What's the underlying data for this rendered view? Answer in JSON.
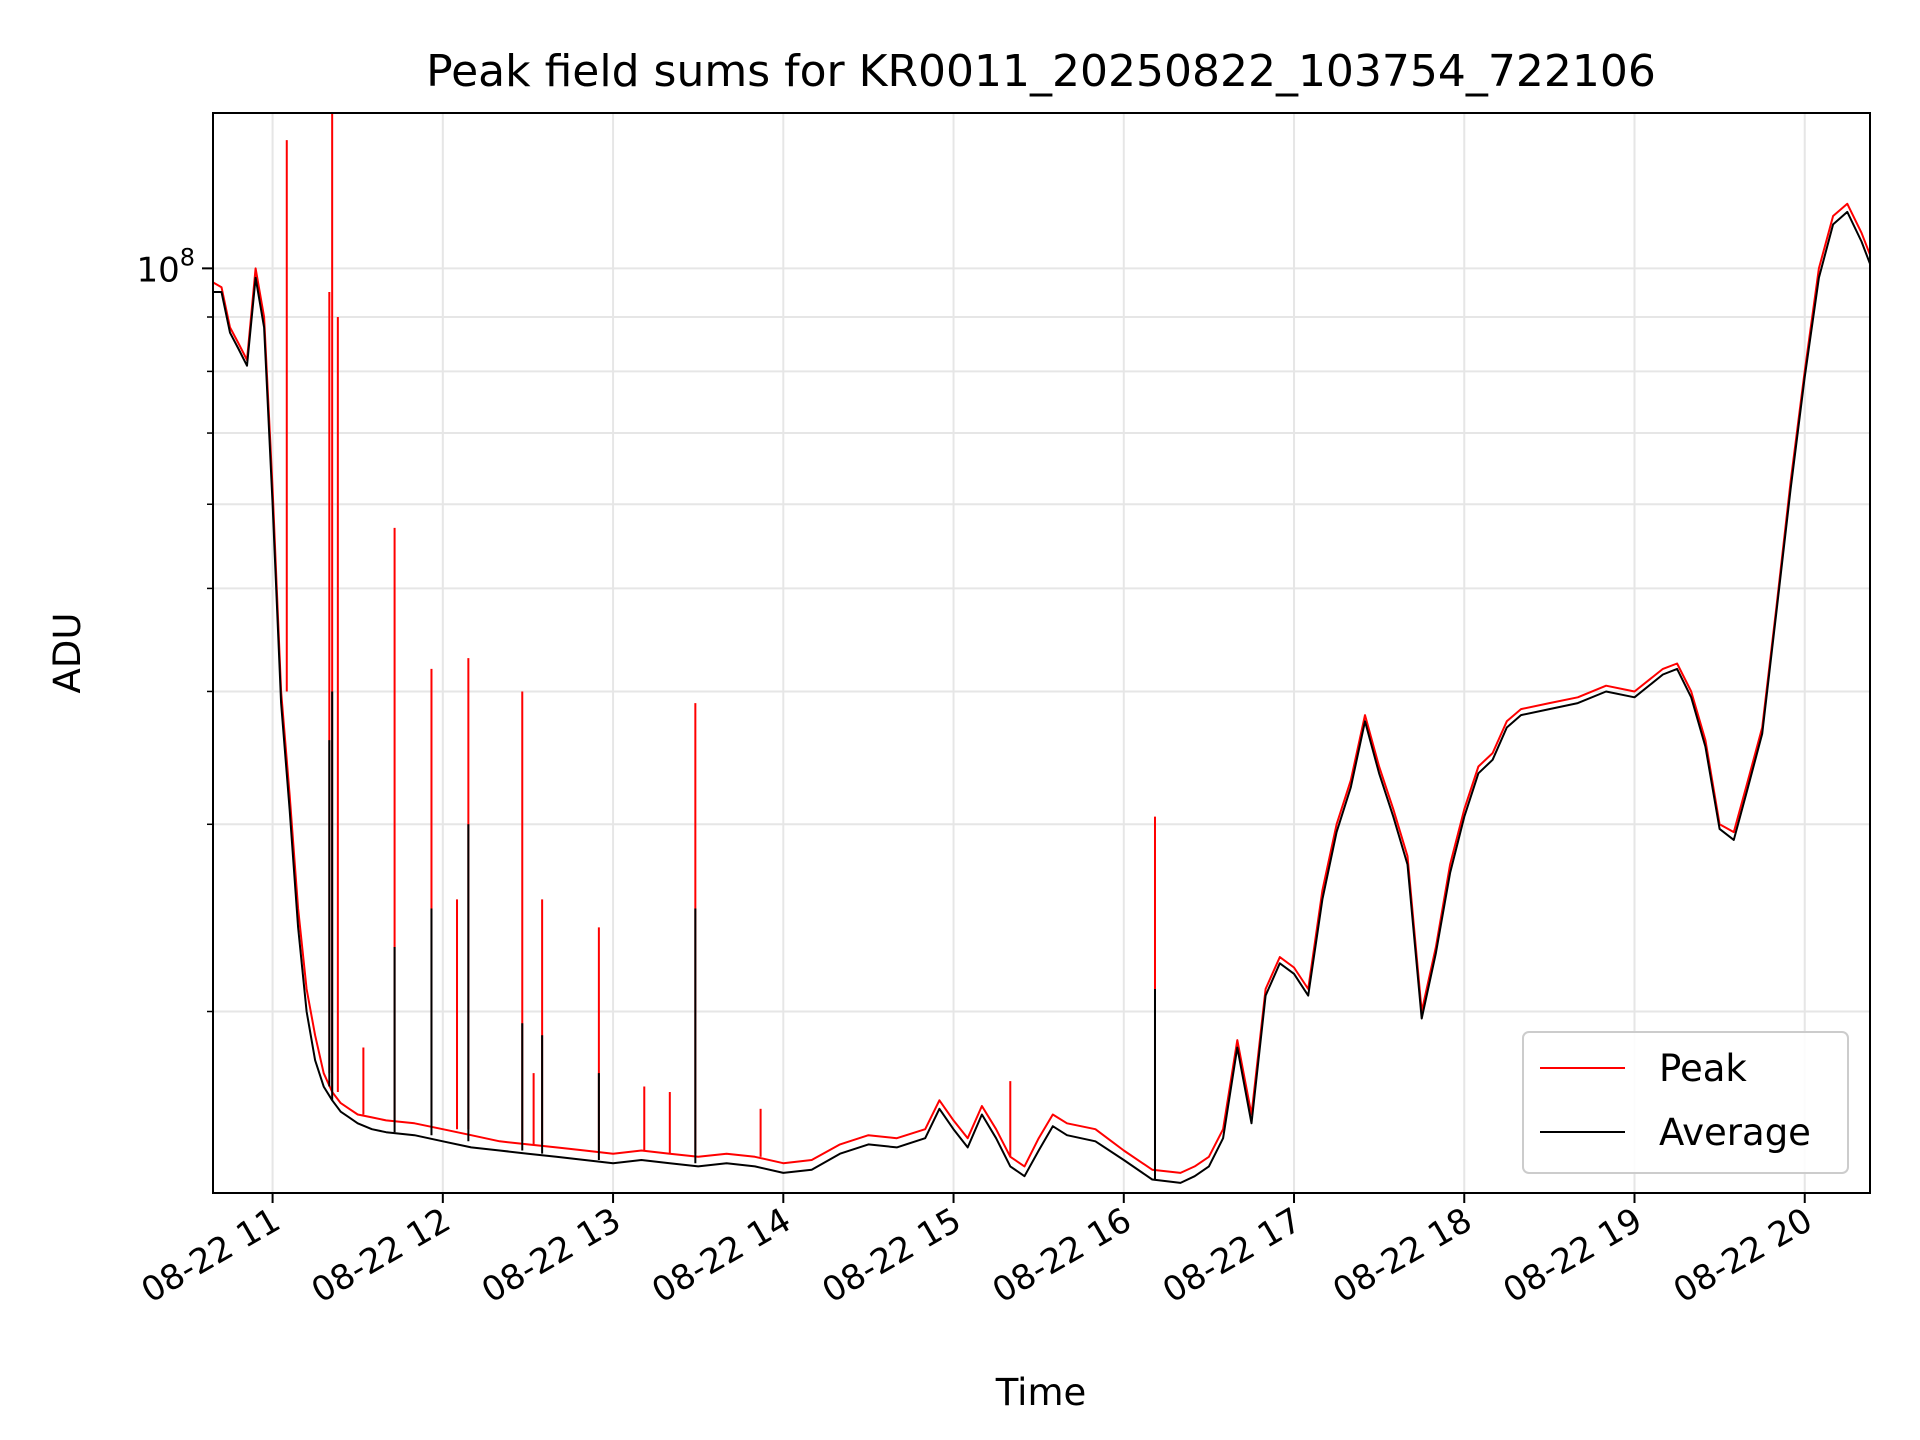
{
  "chart_data": {
    "type": "line",
    "title": "Peak field sums for KR0011_20250822_103754_722106",
    "xlabel": "Time",
    "ylabel": "ADU",
    "x_tick_labels": [
      "08-22 11",
      "08-22 12",
      "08-22 13",
      "08-22 14",
      "08-22 15",
      "08-22 16",
      "08-22 17",
      "08-22 18",
      "08-22 19",
      "08-22 20"
    ],
    "xlim": [
      "2025-08-22 10:39",
      "2025-08-22 20:23"
    ],
    "y_scale": "log",
    "ylim": [
      13500000,
      140000000
    ],
    "y_tick_label_base": "10",
    "y_tick_label_exp": "8",
    "y_major_tick": 100000000,
    "y_minor_ticks": [
      20000000,
      30000000,
      40000000,
      50000000,
      60000000,
      70000000,
      80000000,
      90000000
    ],
    "grid": true,
    "legend_position": "lower-right",
    "series": [
      {
        "name": "Peak",
        "color": "#ff0000",
        "x": [
          "10:39",
          "10:42",
          "10:45",
          "10:48",
          "10:51",
          "10:54",
          "10:57",
          "11:00",
          "11:03",
          "11:06",
          "11:09",
          "11:12",
          "11:15",
          "11:18",
          "11:21",
          "11:24",
          "11:27",
          "11:30",
          "11:35",
          "11:40",
          "11:50",
          "12:00",
          "12:10",
          "12:20",
          "12:30",
          "12:40",
          "12:50",
          "13:00",
          "13:10",
          "13:20",
          "13:30",
          "13:40",
          "13:50",
          "14:00",
          "14:10",
          "14:20",
          "14:30",
          "14:40",
          "14:50",
          "14:55",
          "15:00",
          "15:05",
          "15:10",
          "15:15",
          "15:20",
          "15:25",
          "15:30",
          "15:35",
          "15:40",
          "15:50",
          "16:00",
          "16:10",
          "16:20",
          "16:25",
          "16:30",
          "16:35",
          "16:40",
          "16:45",
          "16:50",
          "16:55",
          "17:00",
          "17:05",
          "17:10",
          "17:15",
          "17:20",
          "17:25",
          "17:30",
          "17:35",
          "17:40",
          "17:45",
          "17:50",
          "17:55",
          "18:00",
          "18:05",
          "18:10",
          "18:15",
          "18:20",
          "18:30",
          "18:40",
          "18:50",
          "19:00",
          "19:10",
          "19:15",
          "19:20",
          "19:25",
          "19:30",
          "19:35",
          "19:40",
          "19:45",
          "19:50",
          "19:55",
          "20:00",
          "20:05",
          "20:10",
          "20:15",
          "20:20",
          "20:23"
        ],
        "values": [
          97000000,
          96000000,
          88000000,
          85000000,
          82000000,
          100000000,
          90000000,
          62000000,
          40000000,
          32000000,
          25000000,
          21000000,
          19000000,
          17500000,
          16800000,
          16400000,
          16200000,
          16000000,
          15900000,
          15800000,
          15700000,
          15500000,
          15300000,
          15100000,
          15000000,
          14900000,
          14800000,
          14700000,
          14800000,
          14700000,
          14600000,
          14700000,
          14600000,
          14400000,
          14500000,
          15000000,
          15300000,
          15200000,
          15500000,
          16500000,
          15800000,
          15200000,
          16300000,
          15500000,
          14600000,
          14300000,
          15200000,
          16000000,
          15700000,
          15500000,
          14800000,
          14200000,
          14100000,
          14300000,
          14600000,
          15500000,
          18800000,
          16000000,
          21000000,
          22500000,
          22000000,
          21000000,
          26000000,
          30000000,
          33000000,
          38000000,
          34000000,
          31000000,
          28000000,
          20000000,
          23000000,
          27500000,
          31000000,
          34000000,
          35000000,
          37500000,
          38500000,
          39000000,
          39500000,
          40500000,
          40000000,
          42000000,
          42500000,
          40000000,
          36000000,
          30000000,
          29500000,
          33000000,
          37000000,
          48000000,
          63000000,
          80000000,
          100000000,
          112000000,
          115000000,
          108000000,
          103000000
        ],
        "spikes": [
          {
            "x": "11:05",
            "value": 132000000
          },
          {
            "x": "11:20",
            "value": 95000000
          },
          {
            "x": "11:21",
            "value": 140000000
          },
          {
            "x": "11:23",
            "value": 90000000
          },
          {
            "x": "11:32",
            "value": 18500000
          },
          {
            "x": "11:43",
            "value": 57000000
          },
          {
            "x": "11:56",
            "value": 42000000
          },
          {
            "x": "12:05",
            "value": 25500000
          },
          {
            "x": "12:09",
            "value": 43000000
          },
          {
            "x": "12:28",
            "value": 40000000
          },
          {
            "x": "12:32",
            "value": 17500000
          },
          {
            "x": "12:35",
            "value": 25500000
          },
          {
            "x": "12:55",
            "value": 24000000
          },
          {
            "x": "13:11",
            "value": 17000000
          },
          {
            "x": "13:20",
            "value": 16800000
          },
          {
            "x": "13:29",
            "value": 39000000
          },
          {
            "x": "13:52",
            "value": 16200000
          },
          {
            "x": "15:20",
            "value": 17200000
          },
          {
            "x": "16:11",
            "value": 30500000
          }
        ]
      },
      {
        "name": "Average",
        "color": "#000000",
        "x": [
          "10:39",
          "10:42",
          "10:45",
          "10:48",
          "10:51",
          "10:54",
          "10:57",
          "11:00",
          "11:03",
          "11:06",
          "11:09",
          "11:12",
          "11:15",
          "11:18",
          "11:21",
          "11:24",
          "11:27",
          "11:30",
          "11:35",
          "11:40",
          "11:50",
          "12:00",
          "12:10",
          "12:20",
          "12:30",
          "12:40",
          "12:50",
          "13:00",
          "13:10",
          "13:20",
          "13:30",
          "13:40",
          "13:50",
          "14:00",
          "14:10",
          "14:20",
          "14:30",
          "14:40",
          "14:50",
          "14:55",
          "15:00",
          "15:05",
          "15:10",
          "15:15",
          "15:20",
          "15:25",
          "15:30",
          "15:35",
          "15:40",
          "15:50",
          "16:00",
          "16:10",
          "16:20",
          "16:25",
          "16:30",
          "16:35",
          "16:40",
          "16:45",
          "16:50",
          "16:55",
          "17:00",
          "17:05",
          "17:10",
          "17:15",
          "17:20",
          "17:25",
          "17:30",
          "17:35",
          "17:40",
          "17:45",
          "17:50",
          "17:55",
          "18:00",
          "18:05",
          "18:10",
          "18:15",
          "18:20",
          "18:30",
          "18:40",
          "18:50",
          "19:00",
          "19:10",
          "19:15",
          "19:20",
          "19:25",
          "19:30",
          "19:35",
          "19:40",
          "19:45",
          "19:50",
          "19:55",
          "20:00",
          "20:05",
          "20:10",
          "20:15",
          "20:20",
          "20:23"
        ],
        "values": [
          95000000,
          95000000,
          87000000,
          84000000,
          81000000,
          98000000,
          88000000,
          60000000,
          39000000,
          31000000,
          24000000,
          20000000,
          18000000,
          17000000,
          16500000,
          16100000,
          15900000,
          15700000,
          15500000,
          15400000,
          15300000,
          15100000,
          14900000,
          14800000,
          14700000,
          14600000,
          14500000,
          14400000,
          14500000,
          14400000,
          14300000,
          14400000,
          14300000,
          14100000,
          14200000,
          14700000,
          15000000,
          14900000,
          15200000,
          16200000,
          15500000,
          14900000,
          16000000,
          15200000,
          14300000,
          14000000,
          14800000,
          15600000,
          15300000,
          15100000,
          14500000,
          13900000,
          13800000,
          14000000,
          14300000,
          15200000,
          18500000,
          15700000,
          20700000,
          22200000,
          21700000,
          20700000,
          25500000,
          29500000,
          32500000,
          37500000,
          33500000,
          30500000,
          27500000,
          19700000,
          22700000,
          27000000,
          30500000,
          33500000,
          34500000,
          37000000,
          38000000,
          38500000,
          39000000,
          40000000,
          39500000,
          41500000,
          42000000,
          39500000,
          35500000,
          29700000,
          29000000,
          32500000,
          36500000,
          47500000,
          62000000,
          79000000,
          98000000,
          110000000,
          113000000,
          106000000,
          101000000
        ],
        "spikes": [
          {
            "x": "11:20",
            "value": 36000000
          },
          {
            "x": "11:21",
            "value": 40000000
          },
          {
            "x": "11:43",
            "value": 23000000
          },
          {
            "x": "11:56",
            "value": 25000000
          },
          {
            "x": "12:09",
            "value": 30000000
          },
          {
            "x": "12:28",
            "value": 19500000
          },
          {
            "x": "12:35",
            "value": 19000000
          },
          {
            "x": "12:55",
            "value": 17500000
          },
          {
            "x": "13:29",
            "value": 25000000
          },
          {
            "x": "16:11",
            "value": 21000000
          }
        ]
      }
    ]
  }
}
